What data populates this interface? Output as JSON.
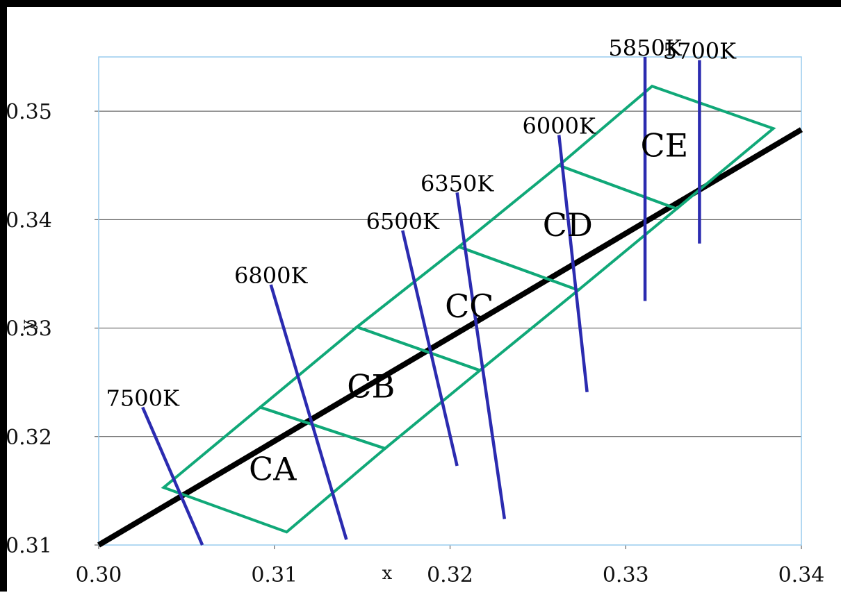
{
  "chart_data": {
    "type": "line",
    "xlabel": "x",
    "ylabel": "y",
    "xlim": [
      0.3,
      0.34
    ],
    "ylim": [
      0.31,
      0.355
    ],
    "x_ticks": [
      {
        "value": 0.3,
        "label": "0.30"
      },
      {
        "value": 0.31,
        "label": "0.31"
      },
      {
        "value": 0.32,
        "label": "0.32"
      },
      {
        "value": 0.33,
        "label": "0.33"
      },
      {
        "value": 0.34,
        "label": "0.34"
      }
    ],
    "y_ticks": [
      {
        "value": 0.31,
        "label": "0.31"
      },
      {
        "value": 0.32,
        "label": "0.32"
      },
      {
        "value": 0.33,
        "label": "0.33"
      },
      {
        "value": 0.34,
        "label": "0.34"
      },
      {
        "value": 0.35,
        "label": "0.35"
      }
    ],
    "grid": "horizontal",
    "colors": {
      "locus": "#000000",
      "isotherm": "#2b2bb0",
      "bins": "#10a878",
      "plot_border": "#99ccee",
      "grid": "#444444"
    },
    "locus": {
      "x": [
        0.3,
        0.34
      ],
      "y": [
        0.31,
        0.3483
      ]
    },
    "isotherms": [
      {
        "label": "7500K",
        "x1": 0.3025,
        "y1": 0.3227,
        "x2": 0.3059,
        "y2": 0.31
      },
      {
        "label": "6800K",
        "x1": 0.3098,
        "y1": 0.334,
        "x2": 0.3141,
        "y2": 0.3105
      },
      {
        "label": "6500K",
        "x1": 0.3173,
        "y1": 0.339,
        "x2": 0.3204,
        "y2": 0.3173
      },
      {
        "label": "6350K",
        "x1": 0.3204,
        "y1": 0.3425,
        "x2": 0.3231,
        "y2": 0.3124
      },
      {
        "label": "6000K",
        "x1": 0.3262,
        "y1": 0.3478,
        "x2": 0.3278,
        "y2": 0.3241
      },
      {
        "label": "5850K",
        "x1": 0.3311,
        "y1": 0.355,
        "x2": 0.3311,
        "y2": 0.3325
      },
      {
        "label": "5700K",
        "x1": 0.3342,
        "y1": 0.3547,
        "x2": 0.3342,
        "y2": 0.3378
      }
    ],
    "bins": [
      {
        "label": "CA",
        "points": [
          [
            0.3037,
            0.3153
          ],
          [
            0.3092,
            0.3227
          ],
          [
            0.3163,
            0.3189
          ],
          [
            0.3107,
            0.3112
          ]
        ],
        "label_at": [
          0.3099,
          0.316
        ]
      },
      {
        "label": "CB",
        "points": [
          [
            0.3092,
            0.3227
          ],
          [
            0.3147,
            0.3301
          ],
          [
            0.3217,
            0.3261
          ],
          [
            0.3163,
            0.3189
          ]
        ],
        "label_at": [
          0.3155,
          0.3236
        ]
      },
      {
        "label": "CC",
        "points": [
          [
            0.3147,
            0.3301
          ],
          [
            0.3205,
            0.3375
          ],
          [
            0.3273,
            0.3335
          ],
          [
            0.3217,
            0.3261
          ]
        ],
        "label_at": [
          0.3211,
          0.331
        ]
      },
      {
        "label": "CD",
        "points": [
          [
            0.3205,
            0.3375
          ],
          [
            0.3262,
            0.345
          ],
          [
            0.3329,
            0.341
          ],
          [
            0.3273,
            0.3335
          ]
        ],
        "label_at": [
          0.3267,
          0.3385
        ]
      },
      {
        "label": "CE",
        "points": [
          [
            0.3262,
            0.345
          ],
          [
            0.3315,
            0.3523
          ],
          [
            0.3384,
            0.3484
          ],
          [
            0.3329,
            0.341
          ]
        ],
        "label_at": [
          0.3322,
          0.3458
        ]
      }
    ]
  }
}
